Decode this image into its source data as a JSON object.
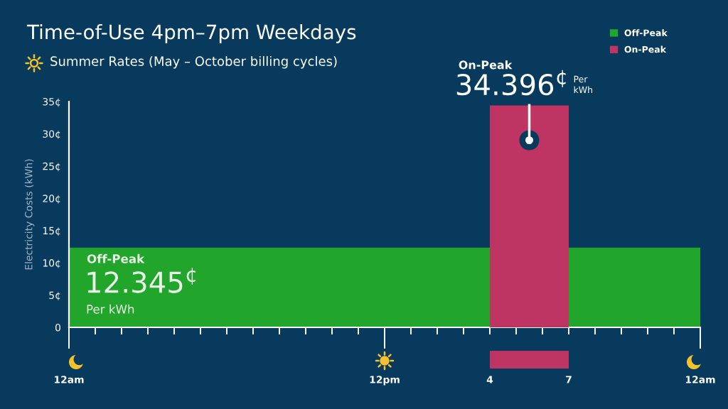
{
  "chart_data": {
    "type": "area",
    "title": "Time-of-Use 4pm–7pm Weekdays",
    "subtitle": "Summer Rates (May – October billing cycles)",
    "ylabel": "Electricity Costs (kWh)",
    "categories": [
      "12am",
      null,
      null,
      null,
      null,
      null,
      null,
      null,
      null,
      null,
      null,
      null,
      "12pm",
      null,
      null,
      null,
      "4",
      null,
      null,
      "7",
      null,
      null,
      null,
      null,
      "12am"
    ],
    "series": [
      {
        "name": "Off-Peak",
        "color": "#22a52b",
        "values": [
          12.345,
          12.345,
          12.345,
          12.345,
          12.345,
          12.345,
          12.345,
          12.345,
          12.345,
          12.345,
          12.345,
          12.345,
          12.345,
          12.345,
          12.345,
          12.345,
          12.345,
          null,
          null,
          12.345,
          12.345,
          12.345,
          12.345,
          12.345,
          12.345
        ],
        "value_labels": [
          "12.345$^{¢}$",
          null,
          null,
          null,
          null,
          null,
          null,
          null,
          null,
          null,
          null,
          null,
          null,
          null,
          null,
          null,
          null,
          null,
          null,
          null,
          null,
          null,
          null,
          null,
          null
        ]
      },
      {
        "name": "On-Peak",
        "color": "#be3462",
        "values": [
          null,
          null,
          null,
          null,
          null,
          null,
          null,
          null,
          null,
          null,
          null,
          null,
          null,
          null,
          null,
          null,
          34.396,
          34.396,
          34.396,
          34.396,
          null,
          null,
          null,
          null,
          null
        ],
        "value_labels": [
          null,
          null,
          null,
          null,
          null,
          null,
          null,
          null,
          null,
          null,
          null,
          null,
          null,
          null,
          null,
          null,
          "34.396$^{¢}$",
          null,
          null,
          null,
          null,
          null,
          null,
          null,
          null
        ]
      }
    ],
    "annotations": [
      "Per kWh",
      "Per\nkWh"
    ],
    "ylim": [
      0,
      35
    ],
    "yticks": [
      0,
      {
        "value": 5,
        "label": "5¢"
      },
      {
        "value": 10,
        "label": "10¢"
      },
      {
        "value": 15,
        "label": "15¢"
      },
      {
        "value": 20,
        "label": "20¢"
      },
      {
        "value": 25,
        "label": "25¢"
      },
      {
        "value": 30,
        "label": "30¢"
      },
      {
        "value": 35,
        "label": "35¢"
      }
    ],
    "legend": "top right"
  }
}
